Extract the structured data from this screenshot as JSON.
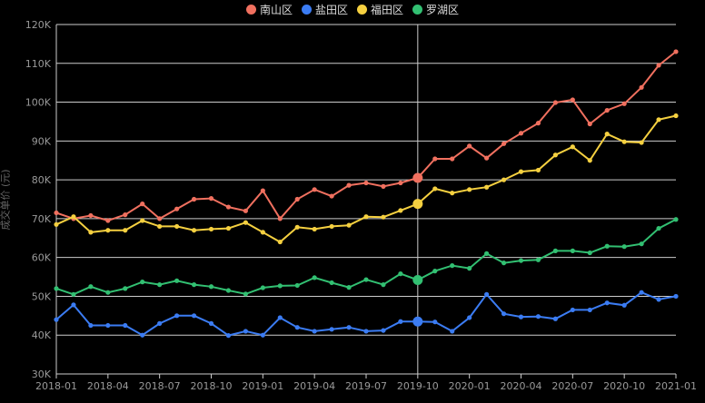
{
  "chart_data": {
    "type": "line",
    "ylabel": "成交单价 (元)",
    "ylim": [
      30000,
      120000
    ],
    "yticks": [
      {
        "value": 30000,
        "label": "30K"
      },
      {
        "value": 40000,
        "label": "40K"
      },
      {
        "value": 50000,
        "label": "50K"
      },
      {
        "value": 60000,
        "label": "60K"
      },
      {
        "value": 70000,
        "label": "70K"
      },
      {
        "value": 80000,
        "label": "80K"
      },
      {
        "value": 90000,
        "label": "90K"
      },
      {
        "value": 100000,
        "label": "100K"
      },
      {
        "value": 110000,
        "label": "110K"
      },
      {
        "value": 120000,
        "label": "120K"
      }
    ],
    "x": [
      "2018-01",
      "2018-02",
      "2018-03",
      "2018-04",
      "2018-05",
      "2018-06",
      "2018-07",
      "2018-08",
      "2018-09",
      "2018-10",
      "2018-11",
      "2018-12",
      "2019-01",
      "2019-02",
      "2019-03",
      "2019-04",
      "2019-05",
      "2019-06",
      "2019-07",
      "2019-08",
      "2019-09",
      "2019-10",
      "2019-11",
      "2019-12",
      "2020-01",
      "2020-02",
      "2020-03",
      "2020-04",
      "2020-05",
      "2020-06",
      "2020-07",
      "2020-08",
      "2020-09",
      "2020-10",
      "2020-11",
      "2020-12",
      "2021-01"
    ],
    "xticks": [
      "2018-01",
      "2018-04",
      "2018-07",
      "2018-10",
      "2019-01",
      "2019-04",
      "2019-07",
      "2019-10",
      "2020-01",
      "2020-04",
      "2020-07",
      "2020-10",
      "2021-01"
    ],
    "legend_position": "top-center",
    "grid": true,
    "highlight_index": 21,
    "series": [
      {
        "name": "南山区",
        "color": "#f0705f",
        "values": [
          71500,
          70000,
          70800,
          69500,
          71000,
          73800,
          70000,
          72500,
          75000,
          75200,
          73000,
          72000,
          77200,
          70000,
          75000,
          77500,
          75800,
          78600,
          79200,
          78300,
          79200,
          80500,
          85400,
          85400,
          88700,
          85600,
          89300,
          92000,
          94600,
          99900,
          100600,
          94400,
          97900,
          99600,
          103800,
          109500,
          113000
        ]
      },
      {
        "name": "盐田区",
        "color": "#3b7cf3",
        "values": [
          44000,
          47800,
          42500,
          42500,
          42500,
          40000,
          43000,
          45000,
          45000,
          43000,
          39900,
          41000,
          40000,
          44500,
          42000,
          41000,
          41500,
          42000,
          41000,
          41200,
          43500,
          43500,
          43400,
          41000,
          44500,
          50500,
          45500,
          44700,
          44800,
          44200,
          46500,
          46500,
          48300,
          47700,
          51000,
          49200,
          50000
        ]
      },
      {
        "name": "福田区",
        "color": "#f5d040",
        "values": [
          68500,
          70500,
          66500,
          67000,
          67000,
          69500,
          68000,
          68000,
          67000,
          67300,
          67500,
          69000,
          66500,
          64000,
          67800,
          67300,
          68000,
          68300,
          70500,
          70400,
          72100,
          73800,
          77700,
          76600,
          77500,
          78100,
          80000,
          82100,
          82500,
          86400,
          88500,
          85000,
          91800,
          89800,
          89600,
          95500,
          96500
        ]
      },
      {
        "name": "罗湖区",
        "color": "#32c072",
        "values": [
          52000,
          50500,
          52500,
          51000,
          52000,
          53700,
          53000,
          54000,
          53000,
          52500,
          51500,
          50600,
          52200,
          52700,
          52800,
          54800,
          53500,
          52300,
          54300,
          53000,
          55800,
          54200,
          56500,
          57900,
          57200,
          61000,
          58600,
          59200,
          59400,
          61700,
          61700,
          61200,
          62900,
          62800,
          63500,
          67500,
          69800
        ]
      }
    ]
  }
}
